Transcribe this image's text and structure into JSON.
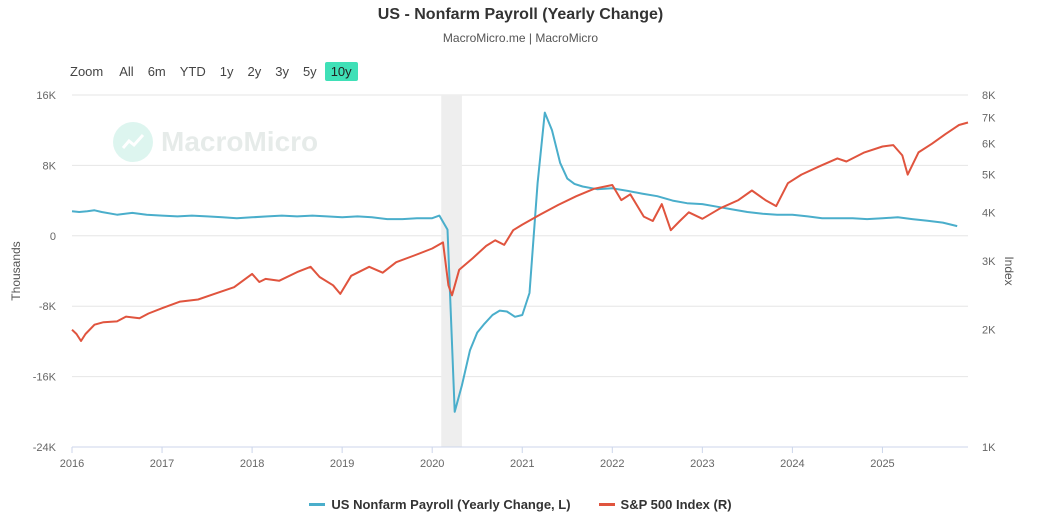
{
  "chart_data": {
    "type": "line",
    "title": "US - Nonfarm Payroll (Yearly Change)",
    "subtitle": "MacroMicro.me | MacroMicro",
    "xlim": [
      2016.0,
      2025.95
    ],
    "x_ticks": [
      "2016",
      "2017",
      "2018",
      "2019",
      "2020",
      "2021",
      "2022",
      "2023",
      "2024",
      "2025"
    ],
    "y_left": {
      "label": "Thousands",
      "ylim": [
        -24,
        16
      ],
      "ticks": [
        16,
        8,
        0,
        -8,
        -16,
        -24
      ],
      "tick_labels": [
        "16K",
        "8K",
        "0",
        "-8K",
        "-16K",
        "-24K"
      ]
    },
    "y_right": {
      "label": "Index",
      "scale": "log",
      "ylim": [
        1000,
        8000
      ],
      "ticks": [
        8000,
        7000,
        6000,
        5000,
        4000,
        3000,
        2000,
        1000
      ],
      "tick_labels": [
        "8K",
        "7K",
        "6K",
        "5K",
        "4K",
        "3K",
        "2K",
        "1K"
      ]
    },
    "shaded_region": [
      2020.1,
      2020.33
    ],
    "series": [
      {
        "name": "US Nonfarm Payroll (Yearly Change, L)",
        "axis": "left",
        "color": "#4aaecb",
        "x": [
          2016.0,
          2016.08,
          2016.17,
          2016.25,
          2016.33,
          2016.5,
          2016.67,
          2016.83,
          2017.0,
          2017.17,
          2017.33,
          2017.5,
          2017.67,
          2017.83,
          2018.0,
          2018.17,
          2018.33,
          2018.5,
          2018.67,
          2018.83,
          2019.0,
          2019.17,
          2019.33,
          2019.5,
          2019.67,
          2019.83,
          2020.0,
          2020.08,
          2020.17,
          2020.25,
          2020.33,
          2020.42,
          2020.5,
          2020.58,
          2020.67,
          2020.75,
          2020.83,
          2020.92,
          2021.0,
          2021.08,
          2021.17,
          2021.25,
          2021.33,
          2021.42,
          2021.5,
          2021.58,
          2021.67,
          2021.83,
          2022.0,
          2022.17,
          2022.33,
          2022.5,
          2022.67,
          2022.83,
          2023.0,
          2023.17,
          2023.33,
          2023.5,
          2023.67,
          2023.83,
          2024.0,
          2024.17,
          2024.33,
          2024.5,
          2024.67,
          2024.83,
          2025.0,
          2025.17,
          2025.33,
          2025.5,
          2025.67,
          2025.83
        ],
        "values": [
          2.8,
          2.7,
          2.8,
          2.9,
          2.7,
          2.4,
          2.6,
          2.4,
          2.3,
          2.2,
          2.3,
          2.2,
          2.1,
          2.0,
          2.1,
          2.2,
          2.3,
          2.2,
          2.3,
          2.2,
          2.1,
          2.2,
          2.1,
          1.9,
          1.9,
          2.0,
          2.0,
          2.3,
          0.7,
          -20.0,
          -17.0,
          -13.0,
          -11.0,
          -10.0,
          -9.0,
          -8.5,
          -8.6,
          -9.2,
          -9.0,
          -6.5,
          6.0,
          14.0,
          12.0,
          8.3,
          6.5,
          5.9,
          5.6,
          5.3,
          5.4,
          5.1,
          4.8,
          4.5,
          4.0,
          3.7,
          3.6,
          3.3,
          3.0,
          2.7,
          2.5,
          2.4,
          2.4,
          2.2,
          2.0,
          2.0,
          2.0,
          1.9,
          2.0,
          2.1,
          1.9,
          1.7,
          1.5,
          1.1
        ]
      },
      {
        "name": "S&P 500 Index (R)",
        "axis": "right",
        "color": "#e0543e",
        "x": [
          2016.0,
          2016.05,
          2016.1,
          2016.15,
          2016.25,
          2016.35,
          2016.5,
          2016.6,
          2016.75,
          2016.85,
          2017.0,
          2017.2,
          2017.4,
          2017.6,
          2017.8,
          2018.0,
          2018.08,
          2018.15,
          2018.3,
          2018.5,
          2018.65,
          2018.75,
          2018.9,
          2018.98,
          2019.1,
          2019.3,
          2019.45,
          2019.6,
          2019.8,
          2020.0,
          2020.12,
          2020.18,
          2020.22,
          2020.3,
          2020.45,
          2020.6,
          2020.7,
          2020.8,
          2020.9,
          2021.0,
          2021.2,
          2021.4,
          2021.6,
          2021.8,
          2022.0,
          2022.1,
          2022.2,
          2022.35,
          2022.45,
          2022.55,
          2022.65,
          2022.75,
          2022.85,
          2023.0,
          2023.2,
          2023.4,
          2023.55,
          2023.7,
          2023.82,
          2023.95,
          2024.1,
          2024.3,
          2024.5,
          2024.6,
          2024.8,
          2025.0,
          2025.12,
          2025.22,
          2025.28,
          2025.4,
          2025.55,
          2025.7,
          2025.85,
          2025.95
        ],
        "values": [
          2000,
          1950,
          1870,
          1950,
          2060,
          2090,
          2100,
          2160,
          2140,
          2200,
          2270,
          2360,
          2390,
          2480,
          2570,
          2780,
          2650,
          2700,
          2670,
          2810,
          2900,
          2730,
          2600,
          2470,
          2750,
          2900,
          2800,
          2980,
          3100,
          3230,
          3350,
          2600,
          2450,
          2850,
          3050,
          3280,
          3390,
          3300,
          3600,
          3720,
          3950,
          4180,
          4400,
          4600,
          4700,
          4300,
          4450,
          3900,
          3800,
          4200,
          3600,
          3800,
          4000,
          3850,
          4100,
          4300,
          4550,
          4300,
          4150,
          4750,
          5000,
          5250,
          5500,
          5400,
          5700,
          5900,
          5950,
          5600,
          5000,
          5700,
          6000,
          6350,
          6700,
          6800
        ]
      }
    ]
  },
  "zoom": {
    "label": "Zoom",
    "options": [
      "All",
      "6m",
      "YTD",
      "1y",
      "2y",
      "3y",
      "5y",
      "10y"
    ],
    "selected": "10y"
  },
  "legend": [
    {
      "label": "US Nonfarm Payroll (Yearly Change, L)",
      "color": "#4aaecb"
    },
    {
      "label": "S&P 500 Index (R)",
      "color": "#e0543e"
    }
  ],
  "watermark": "MacroMicro"
}
